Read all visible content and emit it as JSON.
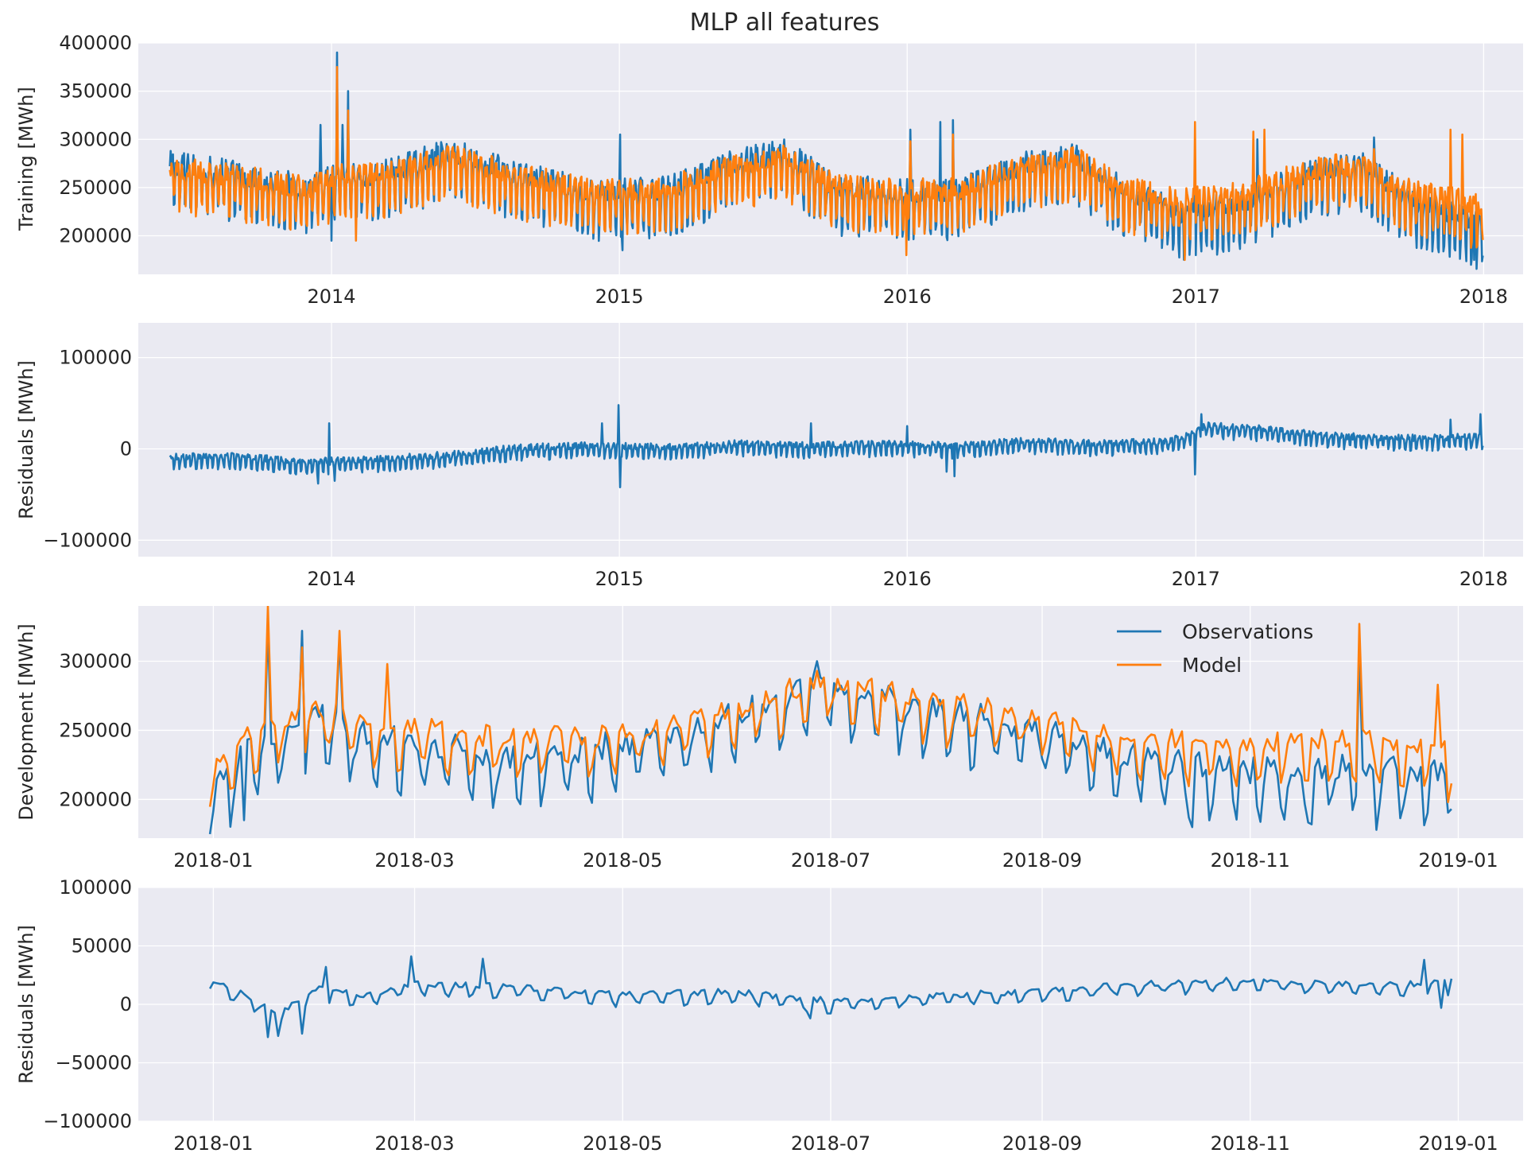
{
  "figure_title": "MLP all features",
  "colors": {
    "observations": "#1f77b4",
    "model": "#ff7f0e",
    "panel_bg": "#eaeaf2",
    "grid": "#ffffff",
    "text": "#262626"
  },
  "legend": {
    "items": [
      "Observations",
      "Model"
    ]
  },
  "chart_data": [
    {
      "type": "line",
      "ylabel": "Training [MWh]",
      "x_kind": "year",
      "xlim": [
        "2013-05-01",
        "2018-02-20"
      ],
      "ylim": [
        160000,
        400000
      ],
      "xticks": [
        "2014",
        "2015",
        "2016",
        "2017",
        "2018"
      ],
      "yticks": [
        200000,
        250000,
        300000,
        350000,
        400000
      ],
      "x_range": [
        "2013-06-10",
        "2017-12-31"
      ],
      "grid": true,
      "series": [
        {
          "name": "Observations",
          "role": "observations",
          "anchors": [
            [
              "2013-06-10",
              262000
            ],
            [
              "2013-09-01",
              252000
            ],
            [
              "2013-12-01",
              238000
            ],
            [
              "2014-01-10",
              250000
            ],
            [
              "2014-03-01",
              250000
            ],
            [
              "2014-06-01",
              275000
            ],
            [
              "2014-09-01",
              250000
            ],
            [
              "2014-12-01",
              232000
            ],
            [
              "2015-03-01",
              235000
            ],
            [
              "2015-06-01",
              265000
            ],
            [
              "2015-08-01",
              275000
            ],
            [
              "2015-10-01",
              238000
            ],
            [
              "2015-12-15",
              233000
            ],
            [
              "2016-03-01",
              232000
            ],
            [
              "2016-06-01",
              262000
            ],
            [
              "2016-08-01",
              270000
            ],
            [
              "2016-10-01",
              235000
            ],
            [
              "2016-12-15",
              210000
            ],
            [
              "2017-03-01",
              222000
            ],
            [
              "2017-06-01",
              255000
            ],
            [
              "2017-08-01",
              262000
            ],
            [
              "2017-10-01",
              225000
            ],
            [
              "2017-12-31",
              200000
            ]
          ],
          "swing": 28000,
          "events": [
            [
              "2014-01-08",
              390000
            ],
            [
              "2014-01-22",
              350000
            ],
            [
              "2014-01-15",
              315000
            ],
            [
              "2013-12-18",
              315000
            ],
            [
              "2015-01-02",
              305000
            ],
            [
              "2016-01-05",
              310000
            ],
            [
              "2016-02-12",
              318000
            ],
            [
              "2016-02-28",
              320000
            ],
            [
              "2016-12-31",
              280000
            ],
            [
              "2017-03-20",
              300000
            ],
            [
              "2017-08-15",
              302000
            ],
            [
              "2017-12-20",
              175000
            ],
            [
              "2015-01-05",
              185000
            ],
            [
              "2014-01-01",
              195000
            ]
          ]
        },
        {
          "name": "Model",
          "role": "model",
          "anchors": [
            [
              "2013-06-10",
              258000
            ],
            [
              "2013-09-01",
              250000
            ],
            [
              "2013-12-01",
              237000
            ],
            [
              "2014-01-10",
              252000
            ],
            [
              "2014-03-01",
              252000
            ],
            [
              "2014-06-01",
              270000
            ],
            [
              "2014-09-01",
              250000
            ],
            [
              "2014-12-01",
              235000
            ],
            [
              "2015-03-01",
              237000
            ],
            [
              "2015-06-01",
              262000
            ],
            [
              "2015-08-01",
              270000
            ],
            [
              "2015-10-01",
              240000
            ],
            [
              "2015-12-15",
              235000
            ],
            [
              "2016-03-01",
              235000
            ],
            [
              "2016-06-01",
              262000
            ],
            [
              "2016-08-01",
              268000
            ],
            [
              "2016-10-01",
              238000
            ],
            [
              "2016-12-15",
              225000
            ],
            [
              "2017-03-01",
              232000
            ],
            [
              "2017-06-01",
              258000
            ],
            [
              "2017-08-01",
              262000
            ],
            [
              "2017-10-01",
              235000
            ],
            [
              "2017-12-31",
              220000
            ]
          ],
          "swing": 26000,
          "events": [
            [
              "2014-01-08",
              375000
            ],
            [
              "2014-01-22",
              330000
            ],
            [
              "2016-01-05",
              298000
            ],
            [
              "2016-02-28",
              305000
            ],
            [
              "2016-12-31",
              318000
            ],
            [
              "2017-03-15",
              308000
            ],
            [
              "2017-03-29",
              310000
            ],
            [
              "2017-08-15",
              290000
            ],
            [
              "2017-11-20",
              310000
            ],
            [
              "2017-12-05",
              305000
            ],
            [
              "2015-12-31",
              180000
            ],
            [
              "2016-12-18",
              175000
            ],
            [
              "2014-02-01",
              195000
            ]
          ]
        }
      ]
    },
    {
      "type": "line",
      "ylabel": "Residuals [MWh]",
      "x_kind": "year",
      "xlim": [
        "2013-05-01",
        "2018-02-20"
      ],
      "ylim": [
        -118000,
        138000
      ],
      "xticks": [
        "2014",
        "2015",
        "2016",
        "2017",
        "2018"
      ],
      "yticks": [
        -100000,
        0,
        100000
      ],
      "x_range": [
        "2013-06-10",
        "2017-12-31"
      ],
      "grid": true,
      "series": [
        {
          "name": "Residuals",
          "role": "observations",
          "anchors": [
            [
              "2013-06-10",
              -12000
            ],
            [
              "2013-09-01",
              -12000
            ],
            [
              "2013-12-01",
              -18000
            ],
            [
              "2014-03-01",
              -15000
            ],
            [
              "2014-06-01",
              -10000
            ],
            [
              "2014-09-01",
              -2000
            ],
            [
              "2014-12-01",
              0
            ],
            [
              "2015-03-01",
              -2000
            ],
            [
              "2015-06-01",
              2000
            ],
            [
              "2015-09-01",
              0
            ],
            [
              "2015-12-01",
              2000
            ],
            [
              "2016-03-01",
              0
            ],
            [
              "2016-06-01",
              5000
            ],
            [
              "2016-09-01",
              2000
            ],
            [
              "2016-12-01",
              5000
            ],
            [
              "2017-01-15",
              22000
            ],
            [
              "2017-04-01",
              18000
            ],
            [
              "2017-07-01",
              10000
            ],
            [
              "2017-10-01",
              8000
            ],
            [
              "2017-12-31",
              10000
            ]
          ],
          "swing": 8000,
          "events": [
            [
              "2013-12-29",
              28000
            ],
            [
              "2014-01-05",
              -35000
            ],
            [
              "2013-12-15",
              -38000
            ],
            [
              "2014-12-31",
              48000
            ],
            [
              "2015-01-02",
              -42000
            ],
            [
              "2014-12-10",
              28000
            ],
            [
              "2015-09-01",
              28000
            ],
            [
              "2016-01-01",
              25000
            ],
            [
              "2016-02-20",
              -25000
            ],
            [
              "2016-03-01",
              -30000
            ],
            [
              "2016-12-31",
              -28000
            ],
            [
              "2017-01-08",
              38000
            ],
            [
              "2017-11-20",
              32000
            ],
            [
              "2017-12-28",
              38000
            ]
          ]
        }
      ]
    },
    {
      "type": "line",
      "ylabel": "Development [MWh]",
      "x_kind": "month",
      "xlim": [
        "2017-12-10",
        "2019-01-20"
      ],
      "ylim": [
        172000,
        340000
      ],
      "xticks": [
        "2018-01",
        "2018-03",
        "2018-05",
        "2018-07",
        "2018-09",
        "2018-11",
        "2019-01"
      ],
      "yticks": [
        200000,
        250000,
        300000
      ],
      "x_range": [
        "2017-12-31",
        "2018-12-30"
      ],
      "grid": true,
      "series": [
        {
          "name": "Observations",
          "role": "observations",
          "anchors": [
            [
              "2017-12-31",
              192000
            ],
            [
              "2018-01-15",
              235000
            ],
            [
              "2018-02-01",
              250000
            ],
            [
              "2018-02-15",
              235000
            ],
            [
              "2018-03-01",
              230000
            ],
            [
              "2018-04-01",
              220000
            ],
            [
              "2018-05-01",
              230000
            ],
            [
              "2018-06-01",
              250000
            ],
            [
              "2018-06-28",
              275000
            ],
            [
              "2018-08-01",
              255000
            ],
            [
              "2018-09-01",
              240000
            ],
            [
              "2018-10-01",
              220000
            ],
            [
              "2018-11-01",
              210000
            ],
            [
              "2018-12-01",
              215000
            ],
            [
              "2018-12-30",
              208000
            ]
          ],
          "swing": 22000,
          "events": [
            [
              "2018-01-17",
              325000
            ],
            [
              "2018-01-27",
              322000
            ],
            [
              "2018-02-07",
              315000
            ],
            [
              "2018-01-10",
              185000
            ],
            [
              "2018-06-27",
              300000
            ],
            [
              "2018-12-03",
              308000
            ],
            [
              "2018-12-08",
              178000
            ],
            [
              "2018-11-19",
              182000
            ],
            [
              "2018-10-15",
              180000
            ]
          ]
        },
        {
          "name": "Model",
          "role": "model",
          "anchors": [
            [
              "2017-12-31",
              208000
            ],
            [
              "2018-01-15",
              245000
            ],
            [
              "2018-02-01",
              258000
            ],
            [
              "2018-02-15",
              245000
            ],
            [
              "2018-03-01",
              243000
            ],
            [
              "2018-04-01",
              235000
            ],
            [
              "2018-05-01",
              240000
            ],
            [
              "2018-06-01",
              255000
            ],
            [
              "2018-06-28",
              278000
            ],
            [
              "2018-08-01",
              262000
            ],
            [
              "2018-09-01",
              252000
            ],
            [
              "2018-10-01",
              235000
            ],
            [
              "2018-11-01",
              232000
            ],
            [
              "2018-12-01",
              235000
            ],
            [
              "2018-12-30",
              225000
            ]
          ],
          "swing": 18000,
          "events": [
            [
              "2018-01-17",
              340000
            ],
            [
              "2018-01-27",
              310000
            ],
            [
              "2018-02-07",
              322000
            ],
            [
              "2018-02-21",
              298000
            ],
            [
              "2018-06-27",
              293000
            ],
            [
              "2018-12-03",
              327000
            ],
            [
              "2018-12-26",
              283000
            ],
            [
              "2018-12-29",
              198000
            ]
          ]
        }
      ]
    },
    {
      "type": "line",
      "ylabel": "Residuals [MWh]",
      "x_kind": "month",
      "xlim": [
        "2017-12-10",
        "2019-01-20"
      ],
      "ylim": [
        -100000,
        100000
      ],
      "xticks": [
        "2018-01",
        "2018-03",
        "2018-05",
        "2018-07",
        "2018-09",
        "2018-11",
        "2019-01"
      ],
      "yticks": [
        -100000,
        -50000,
        0,
        50000,
        100000
      ],
      "x_range": [
        "2017-12-31",
        "2018-12-30"
      ],
      "grid": true,
      "series": [
        {
          "name": "Residuals",
          "role": "observations",
          "anchors": [
            [
              "2017-12-31",
              18000
            ],
            [
              "2018-01-10",
              5000
            ],
            [
              "2018-01-20",
              -10000
            ],
            [
              "2018-02-01",
              10000
            ],
            [
              "2018-02-15",
              5000
            ],
            [
              "2018-03-01",
              15000
            ],
            [
              "2018-04-01",
              12000
            ],
            [
              "2018-05-01",
              5000
            ],
            [
              "2018-06-01",
              8000
            ],
            [
              "2018-07-01",
              0
            ],
            [
              "2018-08-01",
              5000
            ],
            [
              "2018-09-01",
              8000
            ],
            [
              "2018-10-01",
              15000
            ],
            [
              "2018-11-01",
              18000
            ],
            [
              "2018-12-01",
              15000
            ],
            [
              "2018-12-30",
              15000
            ]
          ],
          "swing": 6000,
          "events": [
            [
              "2018-01-17",
              -28000
            ],
            [
              "2018-01-20",
              -27000
            ],
            [
              "2018-01-27",
              -25000
            ],
            [
              "2018-02-03",
              32000
            ],
            [
              "2018-02-28",
              41000
            ],
            [
              "2018-03-21",
              39000
            ],
            [
              "2018-06-25",
              -12000
            ],
            [
              "2018-12-22",
              38000
            ],
            [
              "2018-12-27",
              -3000
            ],
            [
              "2018-12-30",
              22000
            ]
          ]
        }
      ]
    }
  ]
}
